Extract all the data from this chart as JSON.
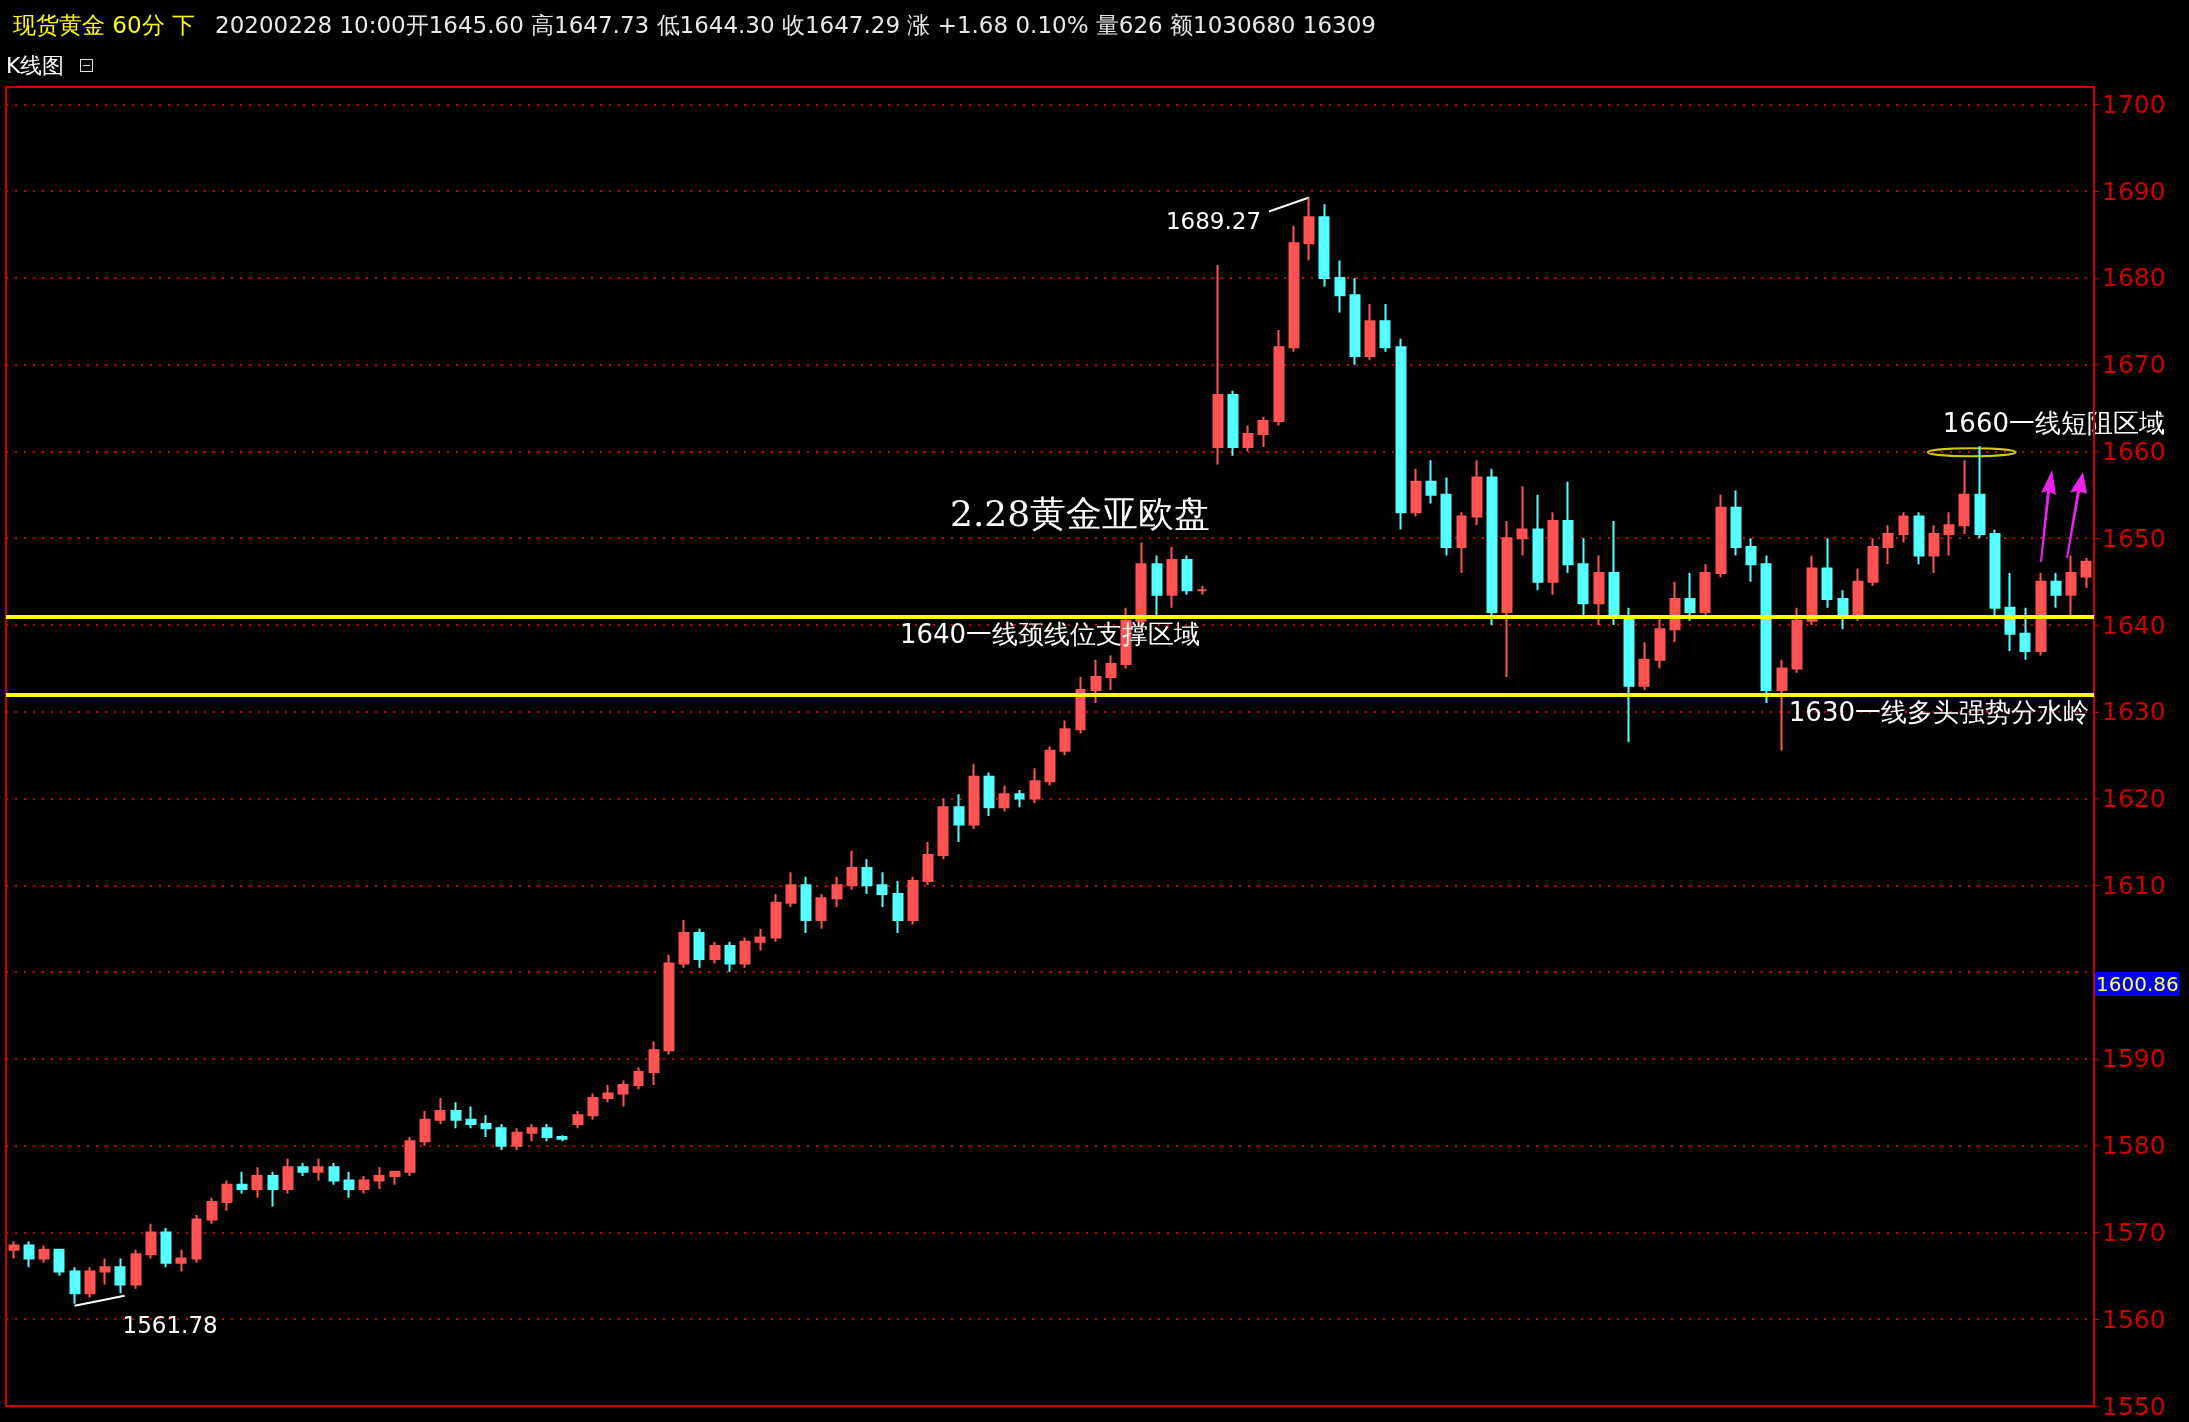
{
  "chart_data": {
    "type": "candlestick",
    "title": "现货黄金 60分 下",
    "subtitle": "20200228 10:00开1645.60 高1647.73 低1644.30 收1647.29 涨 +1.68 0.10% 量626 额1030680 16309",
    "categories": [
      null,
      null,
      null,
      null,
      null,
      null,
      null,
      null,
      null,
      null,
      null,
      null,
      null,
      null,
      null,
      null,
      null,
      null,
      null,
      null,
      null,
      null,
      null,
      null,
      null,
      null,
      null,
      null,
      null,
      null,
      null,
      null,
      null,
      null,
      null,
      null,
      null,
      null,
      null,
      null,
      null,
      null,
      null,
      null,
      null,
      null,
      null,
      null,
      null,
      null,
      null,
      null,
      null,
      null,
      null,
      null,
      null,
      null,
      null,
      null,
      null,
      null,
      null,
      null,
      null,
      null,
      null,
      null,
      null,
      null,
      null,
      null,
      null,
      null,
      null,
      null,
      null,
      null,
      null,
      null,
      null,
      null,
      null,
      null,
      null,
      null,
      null,
      null,
      null,
      null,
      null,
      null,
      null,
      null,
      null,
      null,
      null,
      null,
      null,
      null,
      null,
      null,
      null,
      null,
      null,
      null,
      null,
      null,
      null,
      null,
      null,
      null,
      null,
      null,
      null,
      null,
      null,
      null,
      null,
      null,
      null,
      null,
      null,
      null,
      null,
      null,
      null,
      null,
      null,
      null,
      null,
      null,
      null,
      null,
      null,
      null,
      null
    ],
    "ohlc": [
      [
        1568,
        1569,
        1567,
        1568.5
      ],
      [
        1568.5,
        1569,
        1566,
        1567
      ],
      [
        1567,
        1568.5,
        1566.5,
        1568
      ],
      [
        1568,
        1568,
        1565,
        1565.5
      ],
      [
        1565.5,
        1566,
        1561.78,
        1563
      ],
      [
        1563,
        1566,
        1562.5,
        1565.5
      ],
      [
        1565.5,
        1567,
        1564,
        1566
      ],
      [
        1566,
        1567,
        1563,
        1564
      ],
      [
        1564,
        1568,
        1563.5,
        1567.5
      ],
      [
        1567.5,
        1571,
        1567,
        1570
      ],
      [
        1570,
        1570.5,
        1566,
        1566.5
      ],
      [
        1566.5,
        1568,
        1565.5,
        1567
      ],
      [
        1567,
        1572,
        1566.5,
        1571.5
      ],
      [
        1571.5,
        1574,
        1571,
        1573.5
      ],
      [
        1573.5,
        1576,
        1572.5,
        1575.5
      ],
      [
        1575.5,
        1577,
        1574.5,
        1575
      ],
      [
        1575,
        1577.5,
        1574,
        1576.5
      ],
      [
        1576.5,
        1577,
        1573,
        1575
      ],
      [
        1575,
        1578.5,
        1574.5,
        1577.5
      ],
      [
        1577.5,
        1578,
        1576.5,
        1577
      ],
      [
        1577,
        1578.5,
        1576,
        1577.5
      ],
      [
        1577.5,
        1578,
        1575.5,
        1576
      ],
      [
        1576,
        1577,
        1574,
        1575
      ],
      [
        1575,
        1576.5,
        1574.5,
        1576
      ],
      [
        1576,
        1577.5,
        1575,
        1576.5
      ],
      [
        1576.5,
        1577,
        1575.5,
        1577
      ],
      [
        1577,
        1581,
        1576.5,
        1580.5
      ],
      [
        1580.5,
        1584,
        1580,
        1583
      ],
      [
        1583,
        1585.5,
        1582.5,
        1584
      ],
      [
        1584,
        1585,
        1582,
        1583
      ],
      [
        1583,
        1584.5,
        1582,
        1582.5
      ],
      [
        1582.5,
        1583.5,
        1581,
        1582
      ],
      [
        1582,
        1582.5,
        1579.5,
        1580
      ],
      [
        1580,
        1582,
        1579.5,
        1581.5
      ],
      [
        1581.5,
        1582.5,
        1580.5,
        1582
      ],
      [
        1582,
        1582.5,
        1580.5,
        1581
      ],
      [
        1581,
        1581.2,
        1580.5,
        1580.8
      ],
      [
        1582.5,
        1584,
        1582,
        1583.5
      ],
      [
        1583.5,
        1586,
        1583,
        1585.5
      ],
      [
        1585.5,
        1587,
        1585,
        1586
      ],
      [
        1586,
        1587.5,
        1584.5,
        1587
      ],
      [
        1587,
        1589,
        1586.5,
        1588.5
      ],
      [
        1588.5,
        1592,
        1587,
        1591
      ],
      [
        1591,
        1602,
        1590.5,
        1601
      ],
      [
        1601,
        1606,
        1600.5,
        1604.5
      ],
      [
        1604.5,
        1605,
        1600.5,
        1601.5
      ],
      [
        1601.5,
        1603.5,
        1601,
        1603
      ],
      [
        1603,
        1603.5,
        1600,
        1601
      ],
      [
        1601,
        1604,
        1600.5,
        1603.5
      ],
      [
        1603.5,
        1605,
        1602.5,
        1604
      ],
      [
        1604,
        1609,
        1603.5,
        1608
      ],
      [
        1608,
        1611.5,
        1607.5,
        1610
      ],
      [
        1610,
        1611,
        1604.5,
        1606
      ],
      [
        1606,
        1609,
        1605,
        1608.5
      ],
      [
        1608.5,
        1611,
        1607.5,
        1610
      ],
      [
        1610,
        1614,
        1609.5,
        1612
      ],
      [
        1612,
        1613,
        1609,
        1610
      ],
      [
        1610,
        1611.5,
        1607.5,
        1609
      ],
      [
        1609,
        1610.5,
        1604.5,
        1606
      ],
      [
        1606,
        1611,
        1605.5,
        1610.5
      ],
      [
        1610.5,
        1615,
        1610,
        1613.5
      ],
      [
        1613.5,
        1620,
        1613,
        1619
      ],
      [
        1619,
        1620.5,
        1615,
        1617
      ],
      [
        1617,
        1624,
        1616.5,
        1622.5
      ],
      [
        1622.5,
        1623,
        1618,
        1619
      ],
      [
        1619,
        1621.5,
        1618.5,
        1620.5
      ],
      [
        1620.5,
        1621,
        1619,
        1620
      ],
      [
        1620,
        1623.5,
        1619.5,
        1622
      ],
      [
        1622,
        1626,
        1621.5,
        1625.5
      ],
      [
        1625.5,
        1629,
        1625,
        1628
      ],
      [
        1628,
        1634,
        1627.5,
        1632.5
      ],
      [
        1632.5,
        1636,
        1631,
        1634
      ],
      [
        1634,
        1636.5,
        1632.5,
        1635.5
      ],
      [
        1635.5,
        1642,
        1635,
        1640.5
      ],
      [
        1640.5,
        1649.5,
        1639.5,
        1647
      ],
      [
        1647,
        1648,
        1641,
        1643.5
      ],
      [
        1643.5,
        1649,
        1642,
        1647.5
      ],
      [
        1647.5,
        1648,
        1643.5,
        1644
      ],
      [
        1644,
        1644.5,
        1643.5,
        1644
      ],
      [
        1660.5,
        1681.5,
        1658.5,
        1666.5
      ],
      [
        1666.5,
        1667,
        1659.5,
        1660.5
      ],
      [
        1660.5,
        1663,
        1660,
        1662
      ],
      [
        1662,
        1664,
        1660.5,
        1663.5
      ],
      [
        1663.5,
        1674,
        1663,
        1672
      ],
      [
        1672,
        1686,
        1671.5,
        1684
      ],
      [
        1684,
        1689.27,
        1682,
        1687
      ],
      [
        1687,
        1688.5,
        1679,
        1680
      ],
      [
        1680,
        1682,
        1676,
        1678
      ],
      [
        1678,
        1680,
        1670,
        1671
      ],
      [
        1671,
        1677,
        1670.5,
        1675
      ],
      [
        1675,
        1677,
        1671.5,
        1672
      ],
      [
        1672,
        1673,
        1651,
        1653
      ],
      [
        1653,
        1658,
        1652.5,
        1656.5
      ],
      [
        1656.5,
        1659,
        1654,
        1655
      ],
      [
        1655,
        1657,
        1648,
        1649
      ],
      [
        1649,
        1653,
        1646,
        1652.5
      ],
      [
        1652.5,
        1659,
        1651.5,
        1657
      ],
      [
        1657,
        1658,
        1640,
        1641.5
      ],
      [
        1641.5,
        1652,
        1634,
        1650
      ],
      [
        1650,
        1656,
        1648,
        1651
      ],
      [
        1651,
        1655,
        1644,
        1645
      ],
      [
        1645,
        1653,
        1643.5,
        1652
      ],
      [
        1652,
        1656.5,
        1646,
        1647
      ],
      [
        1647,
        1650,
        1641,
        1642.5
      ],
      [
        1642.5,
        1648,
        1640,
        1646
      ],
      [
        1646,
        1652,
        1640,
        1641
      ],
      [
        1641,
        1642,
        1626.5,
        1633
      ],
      [
        1633,
        1638,
        1632.5,
        1636
      ],
      [
        1636,
        1641,
        1635,
        1639.5
      ],
      [
        1639.5,
        1645,
        1638,
        1643
      ],
      [
        1643,
        1646,
        1640.5,
        1641.5
      ],
      [
        1641.5,
        1647,
        1641,
        1646
      ],
      [
        1646,
        1655,
        1645.5,
        1653.5
      ],
      [
        1653.5,
        1655.5,
        1648,
        1649
      ],
      [
        1649,
        1650,
        1645,
        1647
      ],
      [
        1647,
        1648,
        1631,
        1632.5
      ],
      [
        1632.5,
        1636,
        1625.5,
        1635
      ],
      [
        1635,
        1642,
        1634.5,
        1640.5
      ],
      [
        1640.5,
        1648,
        1640,
        1646.5
      ],
      [
        1646.5,
        1650,
        1642,
        1643
      ],
      [
        1643,
        1644,
        1639.5,
        1641
      ],
      [
        1641,
        1646.5,
        1640.5,
        1645
      ],
      [
        1645,
        1650,
        1644.5,
        1649
      ],
      [
        1649,
        1651.5,
        1647,
        1650.5
      ],
      [
        1650.5,
        1653,
        1649.5,
        1652.5
      ],
      [
        1652.5,
        1653,
        1647,
        1648
      ],
      [
        1648,
        1651.5,
        1646,
        1650.5
      ],
      [
        1650.5,
        1653,
        1648,
        1651.5
      ],
      [
        1651.5,
        1659,
        1650.5,
        1655
      ],
      [
        1655,
        1660.6,
        1650,
        1650.5
      ],
      [
        1650.5,
        1651,
        1641,
        1642
      ],
      [
        1642,
        1646,
        1637,
        1639
      ],
      [
        1639,
        1642,
        1636,
        1637
      ],
      [
        1637,
        1646,
        1636.5,
        1645
      ],
      [
        1645,
        1646,
        1642,
        1643.5
      ],
      [
        1643.5,
        1648,
        1641,
        1646
      ],
      [
        1645.6,
        1647.73,
        1644.3,
        1647.29
      ]
    ],
    "colors": [
      "#ff5252",
      "#54ffff",
      "#ff5252",
      "#54ffff",
      "#54ffff",
      "#ff5252",
      "#ff5252",
      "#54ffff",
      "#ff5252",
      "#ff5252",
      "#54ffff",
      "#ff5252",
      "#ff5252",
      "#ff5252",
      "#ff5252",
      "#54ffff",
      "#ff5252",
      "#54ffff",
      "#ff5252",
      "#54ffff",
      "#ff5252",
      "#54ffff",
      "#54ffff",
      "#ff5252",
      "#ff5252",
      "#ff5252",
      "#ff5252",
      "#ff5252",
      "#ff5252",
      "#54ffff",
      "#54ffff",
      "#54ffff",
      "#54ffff",
      "#ff5252",
      "#ff5252",
      "#54ffff",
      "#54ffff",
      "#ff5252",
      "#ff5252",
      "#ff5252",
      "#ff5252",
      "#ff5252",
      "#ff5252",
      "#ff5252",
      "#ff5252",
      "#54ffff",
      "#ff5252",
      "#54ffff",
      "#ff5252",
      "#ff5252",
      "#ff5252",
      "#ff5252",
      "#54ffff",
      "#ff5252",
      "#ff5252",
      "#ff5252",
      "#54ffff",
      "#54ffff",
      "#54ffff",
      "#ff5252",
      "#ff5252",
      "#ff5252",
      "#54ffff",
      "#ff5252",
      "#54ffff",
      "#ff5252",
      "#54ffff",
      "#ff5252",
      "#ff5252",
      "#ff5252",
      "#ff5252",
      "#ff5252",
      "#ff5252",
      "#ff5252",
      "#ff5252",
      "#54ffff",
      "#ff5252",
      "#54ffff",
      "#ff5252",
      "#ff5252",
      "#54ffff",
      "#ff5252",
      "#ff5252",
      "#ff5252",
      "#ff5252",
      "#ff5252",
      "#54ffff",
      "#54ffff",
      "#54ffff",
      "#ff5252",
      "#54ffff",
      "#54ffff",
      "#ff5252",
      "#54ffff",
      "#54ffff",
      "#ff5252",
      "#ff5252",
      "#54ffff",
      "#ff5252",
      "#ff5252",
      "#54ffff",
      "#ff5252",
      "#54ffff",
      "#54ffff",
      "#ff5252",
      "#54ffff",
      "#54ffff",
      "#ff5252",
      "#ff5252",
      "#ff5252",
      "#54ffff",
      "#ff5252",
      "#ff5252",
      "#54ffff",
      "#54ffff",
      "#54ffff",
      "#ff5252",
      "#ff5252",
      "#ff5252",
      "#54ffff",
      "#54ffff",
      "#ff5252",
      "#ff5252",
      "#ff5252",
      "#ff5252",
      "#54ffff",
      "#ff5252",
      "#ff5252",
      "#ff5252",
      "#54ffff",
      "#54ffff",
      "#54ffff",
      "#54ffff",
      "#ff5252",
      "#54ffff",
      "#ff5252",
      "#ff5252"
    ],
    "ylim": [
      1550,
      1702
    ],
    "yticks": [
      1550,
      1560,
      1570,
      1580,
      1590,
      {
        "value": 1600,
        "label": null
      },
      1610,
      1620,
      1630,
      1640,
      1650,
      1660,
      1670,
      1680,
      1690,
      1700
    ],
    "grid": "y",
    "tick_labels": "y",
    "ref_lines": [
      {
        "axis": "y",
        "value": 1641,
        "label": "1640一线颈线位支撑区域",
        "color": "#ffff00"
      },
      {
        "axis": "y",
        "value": 1632,
        "label": "1630一线多头强势分水岭",
        "color": "#ffff00"
      }
    ],
    "annotations": [
      "K线图",
      "2.28黄金亚欧盘",
      "1689.27",
      "1561.78",
      "1660一线短阻区域",
      "1600.86"
    ]
  }
}
